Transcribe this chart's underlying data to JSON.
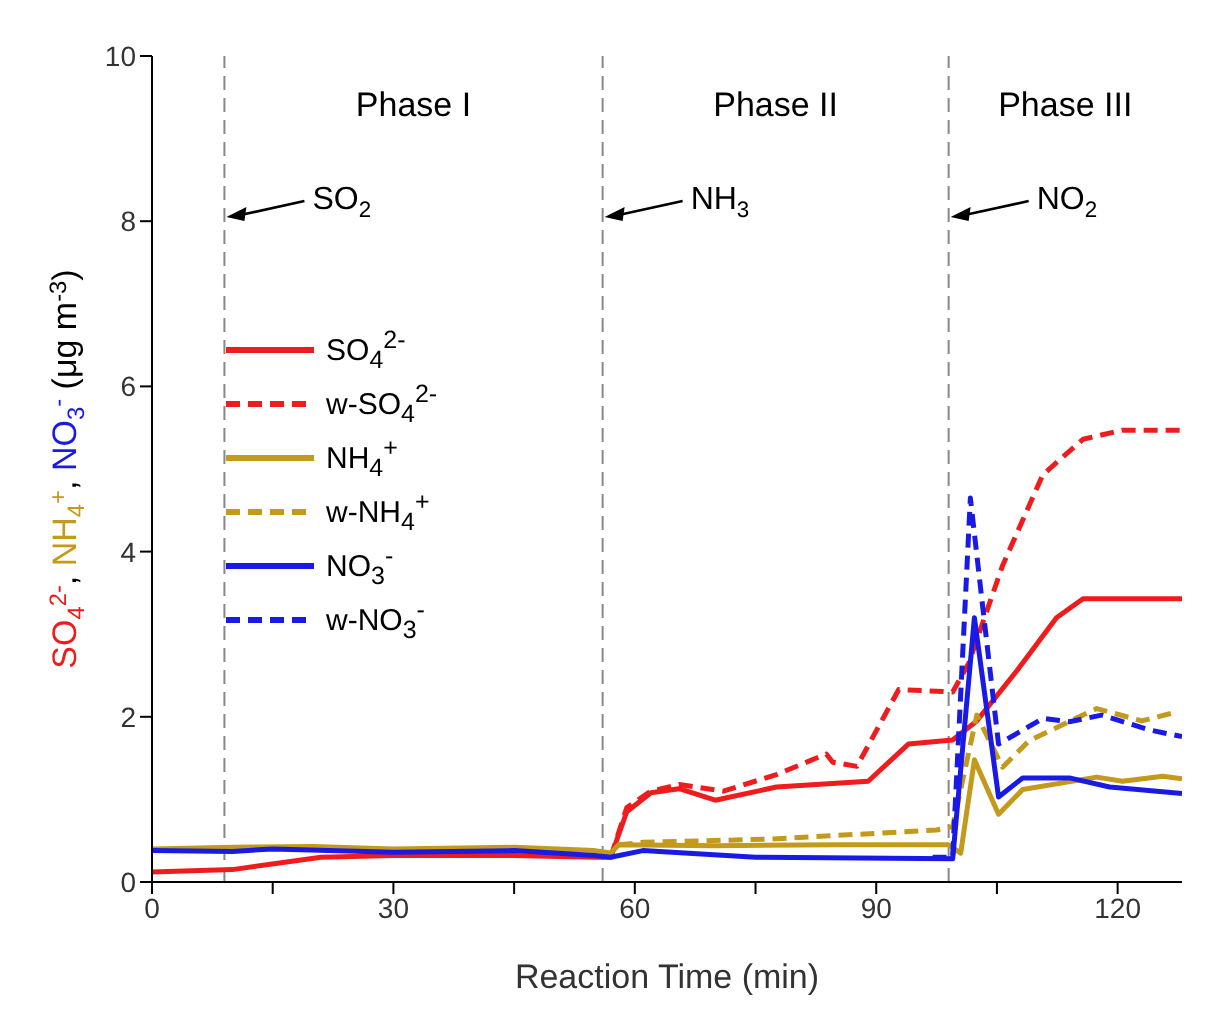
{
  "chart_data": {
    "type": "line",
    "xlabel": "Reaction Time (min)",
    "ylabel": "SO$_{4}$$^{2-}$, NH$_{4}$$^{+}$, NO$_{3}$$^{-}$ (μg m$^{-3}$)",
    "xlim": [
      0,
      128
    ],
    "ylim": [
      0,
      10
    ],
    "xticks": [
      0,
      {
        "value": 15,
        "label": null
      },
      30,
      {
        "value": 45,
        "label": null
      },
      60,
      {
        "value": 75,
        "label": null
      },
      90,
      {
        "value": 105,
        "label": null
      },
      120
    ],
    "yticks": [
      0,
      2,
      4,
      6,
      8,
      10
    ],
    "legend": "left",
    "ref_lines": [
      {
        "axis": "x",
        "value": 9,
        "label": "SO$_{2}$",
        "color": "#888888",
        "line_style": "dashed"
      },
      {
        "axis": "x",
        "value": 56,
        "label": "NH$_{3}$",
        "color": "#888888",
        "line_style": "dashed"
      },
      {
        "axis": "x",
        "value": 99,
        "label": "NO$_{2}$",
        "color": "#888888",
        "line_style": "dashed"
      }
    ],
    "annotations": [
      "Phase I",
      "Phase II",
      "Phase III"
    ],
    "series": [
      {
        "name": "SO$_{4}$$^{2-}$",
        "color": "#ee1c1c",
        "line_style": "solid",
        "x": [
          0,
          10,
          21,
          30,
          45,
          55,
          57,
          59,
          62,
          65.5,
          70,
          77.6,
          89,
          94,
          99.5,
          102.5,
          107.5,
          112.4,
          115.7,
          120,
          128
        ],
        "values": [
          0.12,
          0.15,
          0.3,
          0.32,
          0.32,
          0.3,
          0.3,
          0.85,
          1.08,
          1.13,
          0.99,
          1.15,
          1.22,
          1.67,
          1.72,
          1.95,
          2.56,
          3.2,
          3.43,
          3.43,
          3.43
        ]
      },
      {
        "name": "w-SO$_{4}$$^{2-}$",
        "color": "#ee1c1c",
        "line_style": "dashed",
        "x": [
          57,
          59,
          62,
          65.5,
          71,
          77.6,
          83.8,
          84.6,
          87.6,
          92.8,
          99.5,
          101.5,
          105.7,
          110.7,
          115.7,
          120.6,
          128
        ],
        "values": [
          0.3,
          0.9,
          1.1,
          1.18,
          1.1,
          1.3,
          1.55,
          1.45,
          1.4,
          2.33,
          2.3,
          2.65,
          3.83,
          4.93,
          5.36,
          5.47,
          5.47
        ]
      },
      {
        "name": "NH$_{4}$$^{+}$",
        "color": "#c49a1c",
        "line_style": "solid",
        "x": [
          0,
          10,
          20,
          30,
          45,
          55,
          57,
          58,
          70,
          85,
          99,
          100.5,
          102.2,
          105.2,
          108.2,
          117.4,
          120.6,
          125.6,
          128
        ],
        "values": [
          0.4,
          0.42,
          0.43,
          0.4,
          0.42,
          0.38,
          0.35,
          0.45,
          0.44,
          0.45,
          0.45,
          0.35,
          1.48,
          0.82,
          1.12,
          1.27,
          1.22,
          1.28,
          1.25
        ]
      },
      {
        "name": "w-NH$_{4}$$^{+}$",
        "color": "#c49a1c",
        "line_style": "dashed",
        "x": [
          58,
          61,
          77,
          97.5,
          99.5,
          102.5,
          105.7,
          109,
          117.4,
          123,
          127
        ],
        "values": [
          0.45,
          0.48,
          0.52,
          0.63,
          0.67,
          2.02,
          1.39,
          1.71,
          2.1,
          1.95,
          2.05
        ]
      },
      {
        "name": "NO$_{3}$$^{-}$",
        "color": "#1a1ae6",
        "line_style": "solid",
        "x": [
          0,
          10,
          15,
          30,
          45,
          55,
          57,
          61,
          75,
          99.5,
          102.2,
          105.2,
          108.2,
          114,
          119,
          128
        ],
        "values": [
          0.38,
          0.37,
          0.4,
          0.36,
          0.38,
          0.32,
          0.3,
          0.38,
          0.3,
          0.28,
          3.2,
          1.03,
          1.26,
          1.26,
          1.15,
          1.07
        ]
      },
      {
        "name": "w-NO$_{3}$$^{-}$",
        "color": "#1a1ae6",
        "line_style": "dashed",
        "x": [
          97,
          99.5,
          101.7,
          103.2,
          105.2,
          110.7,
          114,
          118,
          124,
          128
        ],
        "values": [
          0.3,
          0.3,
          4.65,
          3.36,
          1.67,
          1.98,
          1.94,
          2.02,
          1.84,
          1.76
        ]
      }
    ]
  }
}
